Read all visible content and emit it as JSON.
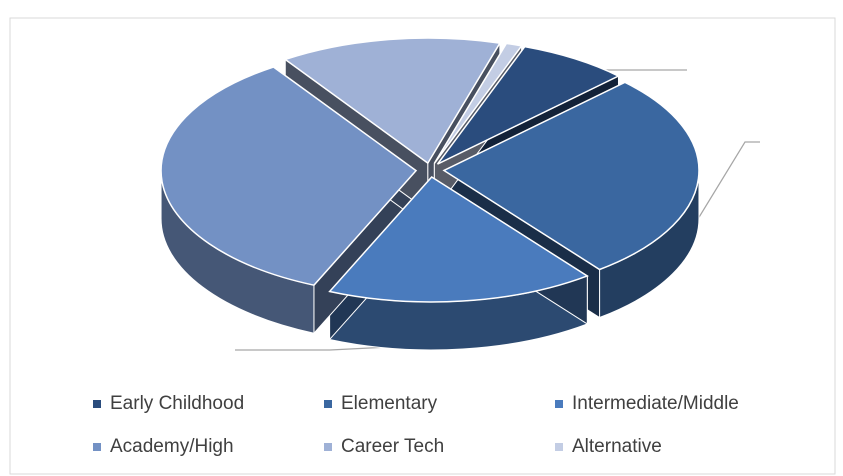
{
  "chart_data": {
    "type": "pie3d",
    "categories": [
      "Early Childhood",
      "Elementary",
      "Intermediate/Middle",
      "Academy/High",
      "Career Tech",
      "Alternative"
    ],
    "values": [
      7,
      27,
      17,
      34,
      14,
      1
    ],
    "colors": [
      "#2a4c7d",
      "#3a67a0",
      "#4a7bbd",
      "#7391c4",
      "#9fb1d6",
      "#c3cde4"
    ],
    "legend": "bottom"
  }
}
